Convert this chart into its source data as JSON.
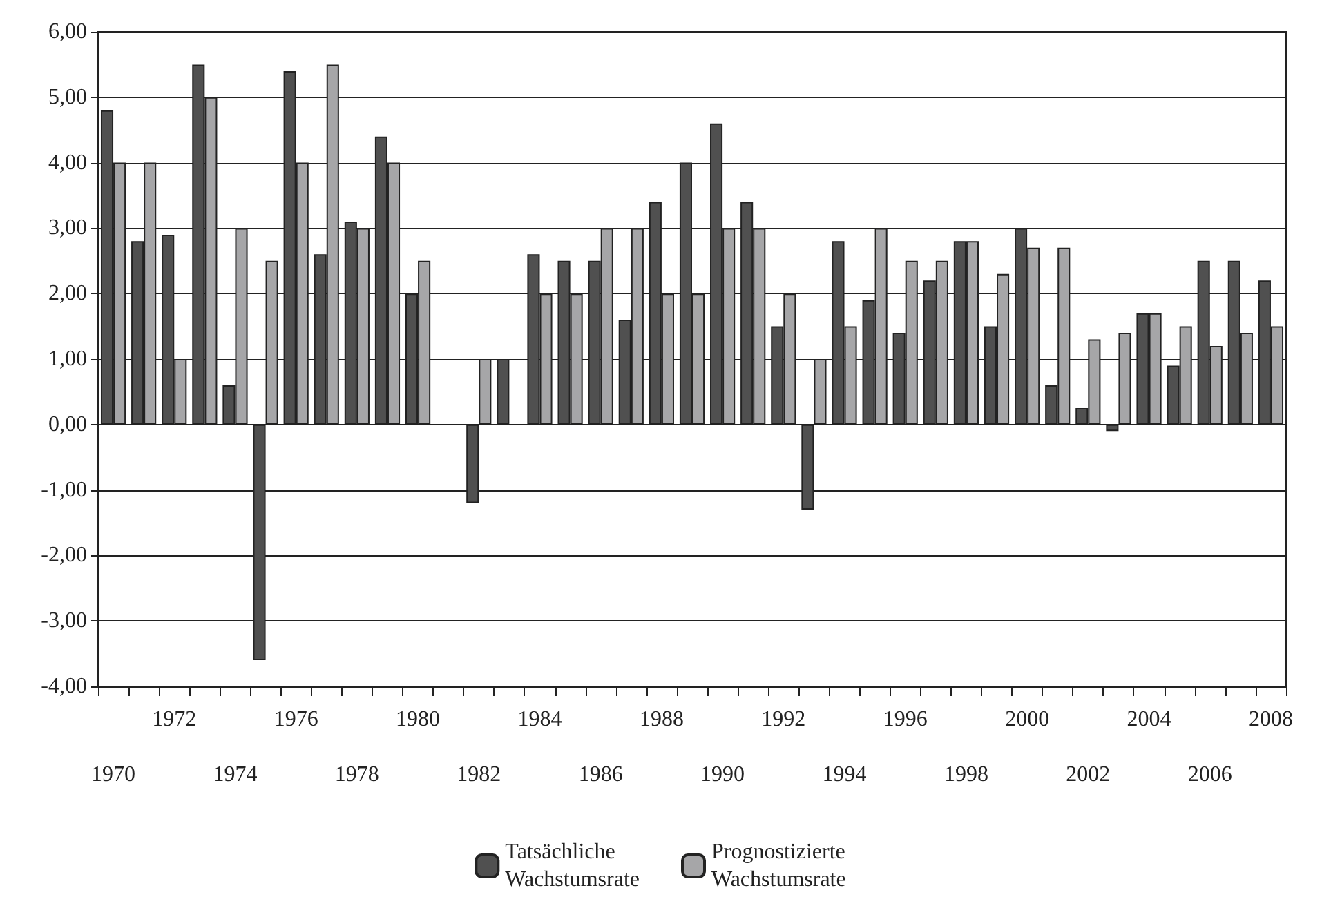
{
  "chart_data": {
    "type": "bar",
    "categories": [
      "1970",
      null,
      "1972",
      null,
      "1974",
      null,
      "1976",
      null,
      "1978",
      null,
      "1980",
      null,
      "1982",
      null,
      "1984",
      null,
      "1986",
      null,
      "1988",
      null,
      "1990",
      null,
      "1992",
      null,
      "1994",
      null,
      "1996",
      null,
      "1998",
      null,
      "2000",
      null,
      "2002",
      null,
      "2004",
      null,
      "2006",
      null,
      "2008"
    ],
    "series": [
      {
        "name": "Tatsächliche Wachstumsrate",
        "color": "#505050",
        "values": [
          4.8,
          2.8,
          2.9,
          5.5,
          0.6,
          -3.6,
          5.4,
          2.6,
          3.1,
          4.4,
          2.0,
          null,
          -1.2,
          1.0,
          2.6,
          2.5,
          2.5,
          1.6,
          3.4,
          4.0,
          4.6,
          3.4,
          1.5,
          -1.3,
          2.8,
          1.9,
          1.4,
          2.2,
          2.8,
          1.5,
          3.0,
          0.6,
          0.25,
          -0.1,
          1.7,
          0.9,
          2.5,
          2.5,
          2.2
        ]
      },
      {
        "name": "Prognostizierte Wachstumsrate",
        "color": "#a6a6a8",
        "values": [
          4.0,
          4.0,
          1.0,
          5.0,
          3.0,
          2.5,
          4.0,
          5.5,
          3.0,
          4.0,
          2.5,
          null,
          1.0,
          null,
          2.0,
          2.0,
          3.0,
          3.0,
          2.0,
          2.0,
          3.0,
          3.0,
          2.0,
          1.0,
          1.5,
          3.0,
          2.5,
          2.5,
          2.8,
          2.3,
          2.7,
          2.7,
          1.3,
          1.4,
          1.7,
          1.5,
          1.2,
          1.4,
          1.5
        ]
      }
    ],
    "ylim": [
      -4,
      6
    ],
    "yticks": [
      {
        "value": -4,
        "label": "-4,00"
      },
      {
        "value": -3,
        "label": "-3,00"
      },
      {
        "value": -2,
        "label": "-2,00"
      },
      {
        "value": -1,
        "label": "-1,00"
      },
      {
        "value": 0,
        "label": "0,00"
      },
      {
        "value": 1,
        "label": "1,00"
      },
      {
        "value": 2,
        "label": "2,00"
      },
      {
        "value": 3,
        "label": "3,00"
      },
      {
        "value": 4,
        "label": "4,00"
      },
      {
        "value": 5,
        "label": "5,00"
      },
      {
        "value": 6,
        "label": "6,00"
      }
    ],
    "grid": "y",
    "legend": "bottom"
  }
}
